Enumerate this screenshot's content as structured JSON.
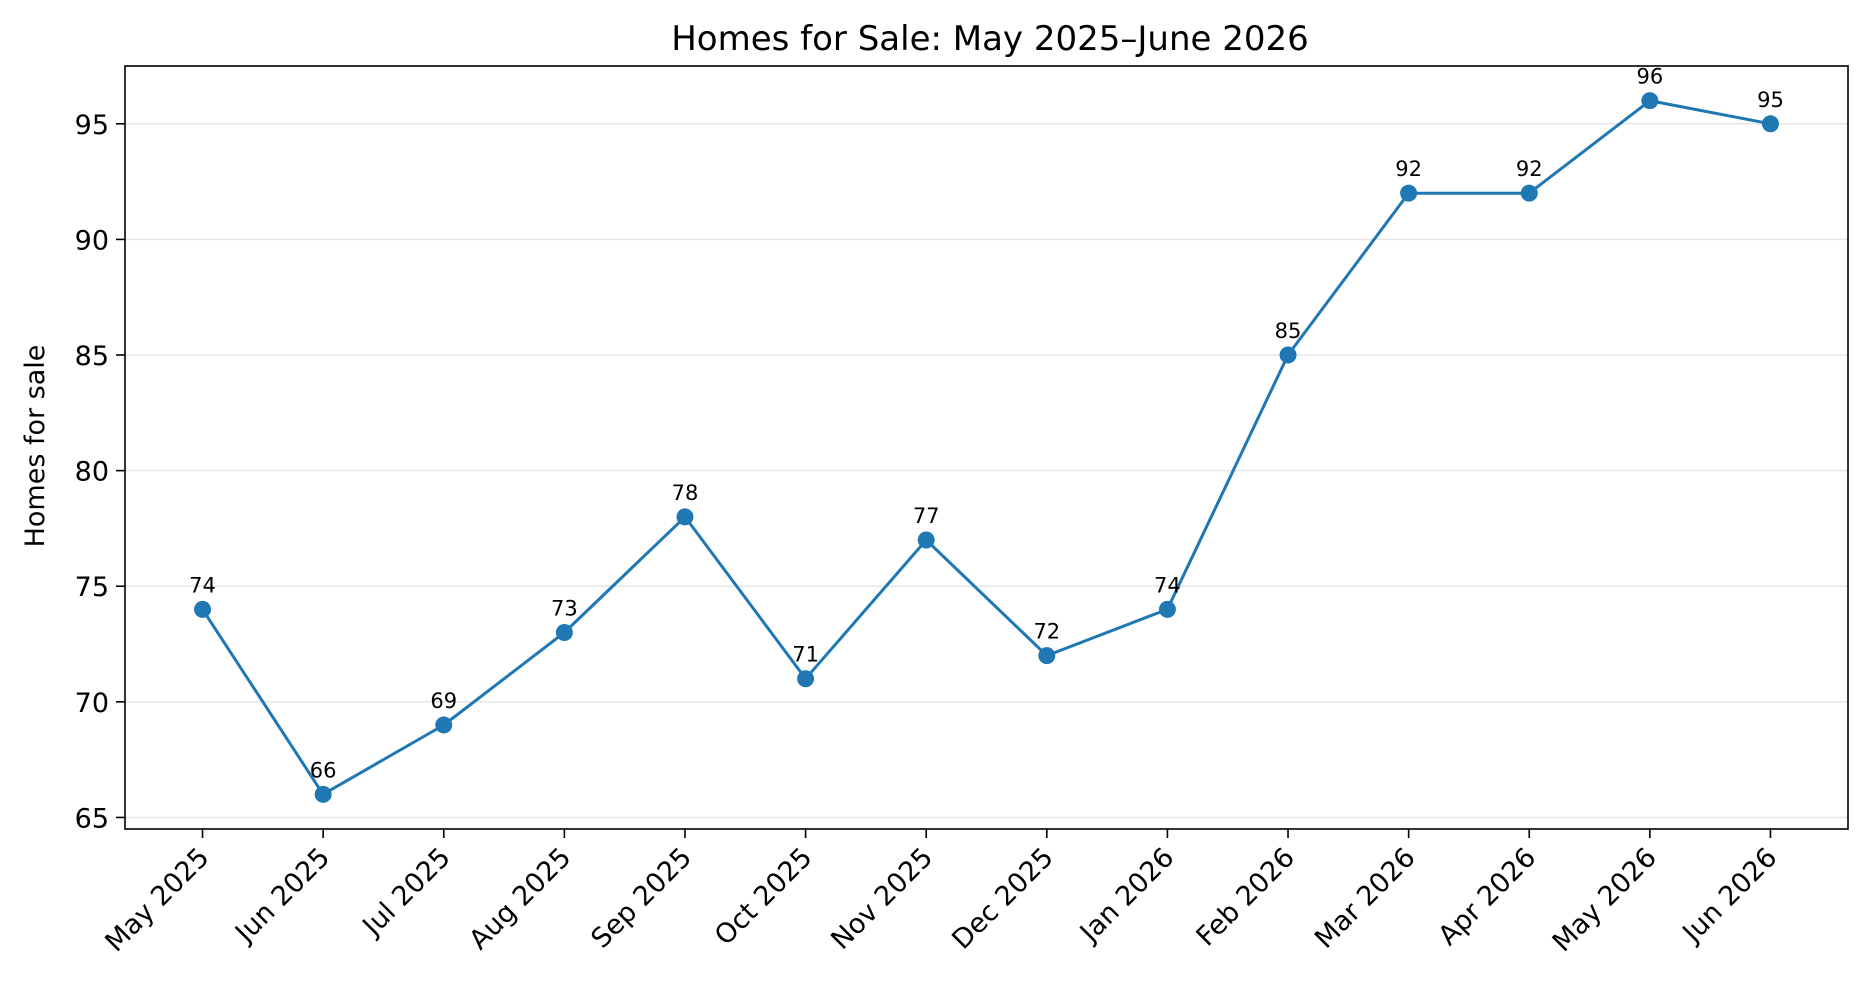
{
  "chart_data": {
    "type": "line",
    "title": "Homes for Sale: May 2025–June 2026",
    "xlabel": "",
    "ylabel": "Homes for sale",
    "categories": [
      "May 2025",
      "Jun 2025",
      "Jul 2025",
      "Aug 2025",
      "Sep 2025",
      "Oct 2025",
      "Nov 2025",
      "Dec 2025",
      "Jan 2026",
      "Feb 2026",
      "Mar 2026",
      "Apr 2026",
      "May 2026",
      "Jun 2026"
    ],
    "series": [
      {
        "values": [
          74,
          66,
          69,
          73,
          78,
          71,
          77,
          72,
          74,
          85,
          92,
          92,
          96,
          95
        ],
        "color": "#1f77b4",
        "marker": "circle"
      }
    ],
    "data_labels": [
      "74",
      "66",
      "69",
      "73",
      "78",
      "71",
      "77",
      "72",
      "74",
      "85",
      "92",
      "92",
      "96",
      "95"
    ],
    "y_ticks": [
      65,
      70,
      75,
      80,
      85,
      90,
      95
    ],
    "ylim": [
      64.5,
      97.5
    ],
    "grid": "y-only",
    "legend": "none"
  }
}
